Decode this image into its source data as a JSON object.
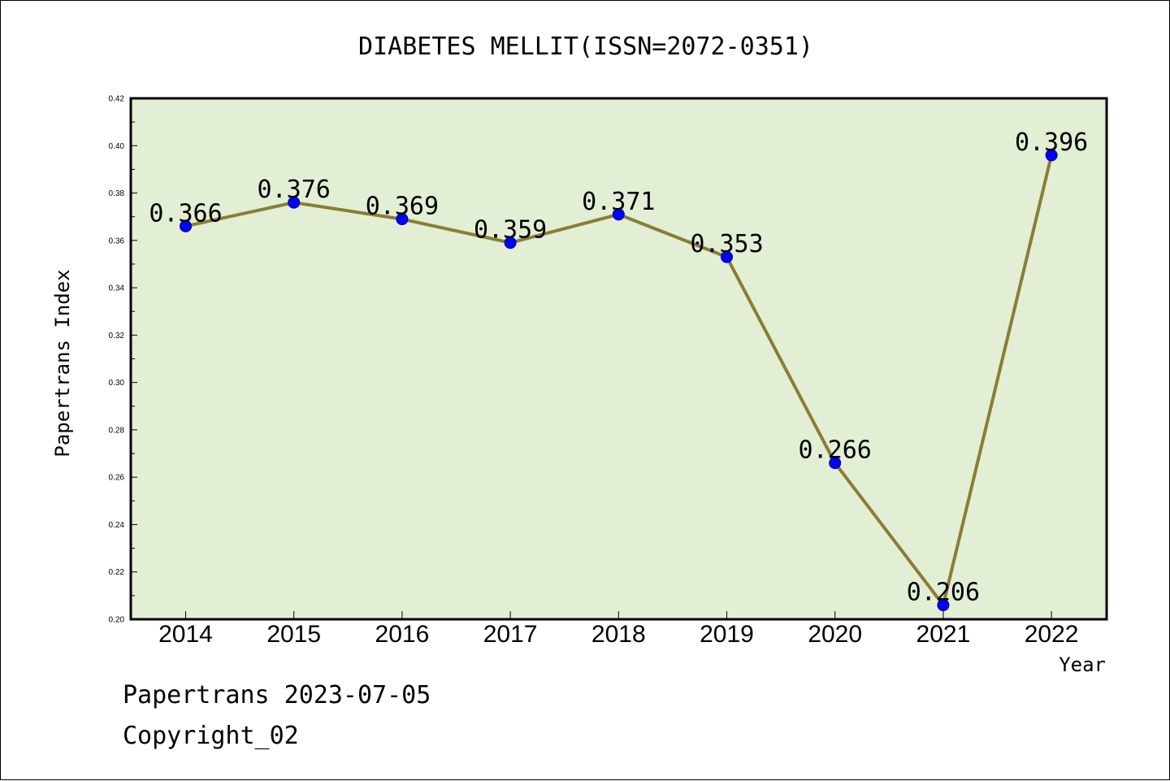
{
  "chart_data": {
    "type": "line",
    "title": "DIABETES MELLIT(ISSN=2072-0351)",
    "xlabel": "Year",
    "ylabel": "Papertrans Index",
    "categories": [
      "2014",
      "2015",
      "2016",
      "2017",
      "2018",
      "2019",
      "2020",
      "2021",
      "2022"
    ],
    "values": [
      0.366,
      0.376,
      0.369,
      0.359,
      0.371,
      0.353,
      0.266,
      0.206,
      0.396
    ],
    "data_labels": [
      "0.366",
      "0.376",
      "0.369",
      "0.359",
      "0.371",
      "0.353",
      "0.266",
      "0.206",
      "0.396"
    ],
    "ylim": [
      0.2,
      0.42
    ],
    "yticks": [
      "0.20",
      "0.22",
      "0.24",
      "0.26",
      "0.28",
      "0.30",
      "0.32",
      "0.34",
      "0.36",
      "0.38",
      "0.40",
      "0.42"
    ],
    "grid": false,
    "legend": "none",
    "colors": {
      "plot_background": "#e2efd5",
      "line": "#8b7d35",
      "marker": "#0000ff"
    }
  },
  "footer": {
    "line1": "Papertrans 2023-07-05",
    "line2": "Copyright_02"
  }
}
